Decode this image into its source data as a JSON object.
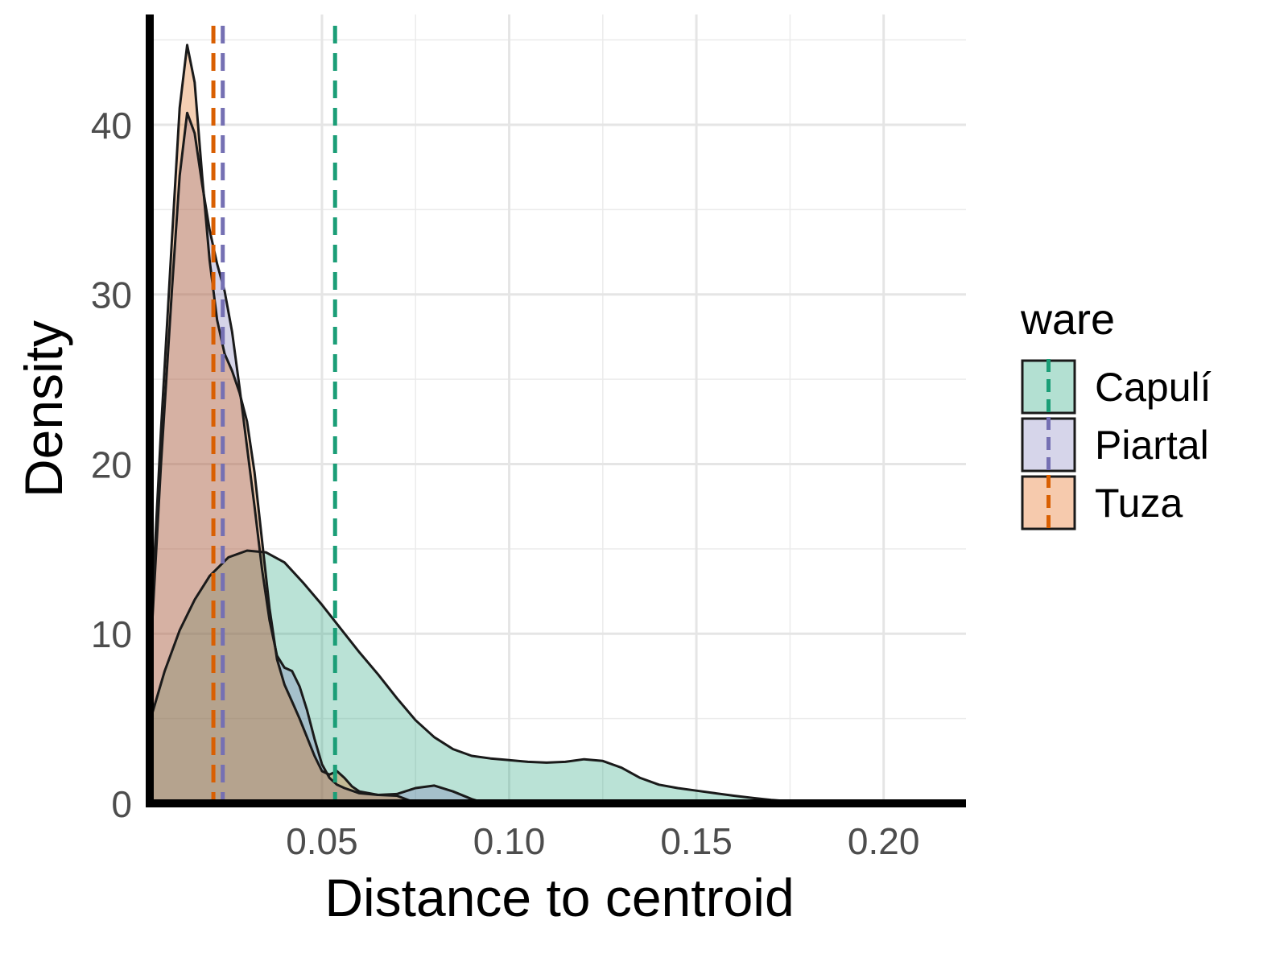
{
  "chart_data": {
    "type": "area",
    "xlabel": "Distance to centroid",
    "ylabel": "Density",
    "xlim": [
      0.004,
      0.222
    ],
    "ylim": [
      0,
      46.5
    ],
    "x_ticks": [
      0.05,
      0.1,
      0.15,
      0.2
    ],
    "x_tick_labels": [
      "0.05",
      "0.10",
      "0.15",
      "0.20"
    ],
    "y_ticks": [
      0,
      10,
      20,
      30,
      40
    ],
    "y_tick_labels": [
      "0",
      "10",
      "20",
      "30",
      "40"
    ],
    "grid": true,
    "legend": {
      "title": "ware",
      "position": "right"
    },
    "series": [
      {
        "name": "Capulí",
        "color": "#1B9E77",
        "fill": "#B3E0D2",
        "mean_line_x": 0.0535,
        "points": [
          [
            0.004,
            4.8
          ],
          [
            0.008,
            7.8
          ],
          [
            0.012,
            10.2
          ],
          [
            0.016,
            12.0
          ],
          [
            0.02,
            13.4
          ],
          [
            0.025,
            14.5
          ],
          [
            0.03,
            14.9
          ],
          [
            0.035,
            14.8
          ],
          [
            0.04,
            14.2
          ],
          [
            0.045,
            13.0
          ],
          [
            0.05,
            11.7
          ],
          [
            0.055,
            10.3
          ],
          [
            0.06,
            8.9
          ],
          [
            0.065,
            7.6
          ],
          [
            0.07,
            6.2
          ],
          [
            0.075,
            4.9
          ],
          [
            0.08,
            3.9
          ],
          [
            0.085,
            3.2
          ],
          [
            0.09,
            2.8
          ],
          [
            0.095,
            2.65
          ],
          [
            0.1,
            2.55
          ],
          [
            0.105,
            2.45
          ],
          [
            0.11,
            2.4
          ],
          [
            0.115,
            2.45
          ],
          [
            0.12,
            2.6
          ],
          [
            0.125,
            2.5
          ],
          [
            0.13,
            2.1
          ],
          [
            0.135,
            1.5
          ],
          [
            0.14,
            1.1
          ],
          [
            0.145,
            0.9
          ],
          [
            0.15,
            0.75
          ],
          [
            0.155,
            0.6
          ],
          [
            0.16,
            0.45
          ],
          [
            0.165,
            0.32
          ],
          [
            0.17,
            0.2
          ],
          [
            0.175,
            0.12
          ],
          [
            0.18,
            0.08
          ],
          [
            0.19,
            0.06
          ],
          [
            0.2,
            0.08
          ],
          [
            0.205,
            0.1
          ],
          [
            0.21,
            0.05
          ]
        ]
      },
      {
        "name": "Piartal",
        "color": "#7570B3",
        "fill": "#D6D5EA",
        "mean_line_x": 0.0235,
        "points": [
          [
            0.004,
            8.0
          ],
          [
            0.007,
            20.0
          ],
          [
            0.01,
            30.5
          ],
          [
            0.012,
            37.0
          ],
          [
            0.014,
            40.7
          ],
          [
            0.016,
            39.5
          ],
          [
            0.018,
            36.5
          ],
          [
            0.02,
            33.8
          ],
          [
            0.022,
            31.8
          ],
          [
            0.024,
            30.2
          ],
          [
            0.026,
            27.8
          ],
          [
            0.028,
            24.5
          ],
          [
            0.03,
            21.0
          ],
          [
            0.032,
            17.5
          ],
          [
            0.034,
            13.8
          ],
          [
            0.036,
            10.8
          ],
          [
            0.038,
            8.7
          ],
          [
            0.04,
            8.0
          ],
          [
            0.042,
            7.8
          ],
          [
            0.044,
            6.9
          ],
          [
            0.046,
            5.5
          ],
          [
            0.048,
            3.8
          ],
          [
            0.05,
            2.3
          ],
          [
            0.052,
            1.5
          ],
          [
            0.054,
            1.1
          ],
          [
            0.056,
            0.9
          ],
          [
            0.06,
            0.6
          ],
          [
            0.065,
            0.5
          ],
          [
            0.07,
            0.55
          ],
          [
            0.075,
            0.9
          ],
          [
            0.08,
            1.05
          ],
          [
            0.085,
            0.7
          ],
          [
            0.09,
            0.25
          ],
          [
            0.093,
            0.05
          ]
        ]
      },
      {
        "name": "Tuza",
        "color": "#D95F02",
        "fill": "#F6CAAD",
        "mean_line_x": 0.021,
        "points": [
          [
            0.004,
            9.0
          ],
          [
            0.007,
            22.0
          ],
          [
            0.01,
            33.5
          ],
          [
            0.012,
            41.0
          ],
          [
            0.014,
            44.7
          ],
          [
            0.016,
            42.5
          ],
          [
            0.018,
            37.0
          ],
          [
            0.02,
            32.0
          ],
          [
            0.022,
            28.5
          ],
          [
            0.024,
            26.5
          ],
          [
            0.026,
            25.5
          ],
          [
            0.028,
            24.2
          ],
          [
            0.03,
            22.5
          ],
          [
            0.032,
            19.5
          ],
          [
            0.034,
            15.5
          ],
          [
            0.036,
            11.5
          ],
          [
            0.038,
            8.5
          ],
          [
            0.04,
            7.0
          ],
          [
            0.042,
            6.0
          ],
          [
            0.044,
            5.0
          ],
          [
            0.046,
            3.9
          ],
          [
            0.048,
            2.8
          ],
          [
            0.05,
            1.9
          ],
          [
            0.052,
            1.7
          ],
          [
            0.054,
            1.9
          ],
          [
            0.056,
            1.5
          ],
          [
            0.058,
            1.0
          ],
          [
            0.06,
            0.7
          ],
          [
            0.065,
            0.5
          ],
          [
            0.07,
            0.45
          ],
          [
            0.073,
            0.2
          ],
          [
            0.075,
            0.05
          ]
        ]
      }
    ]
  }
}
